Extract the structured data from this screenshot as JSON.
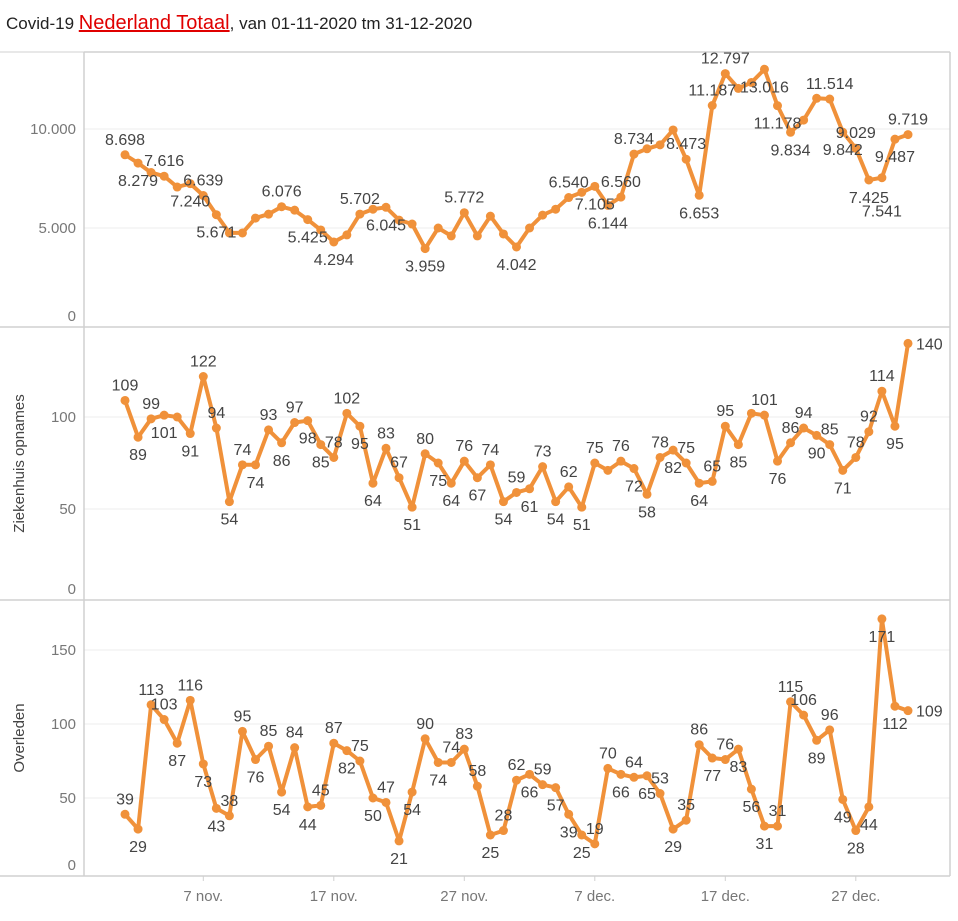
{
  "header": {
    "prefix": "Covid-19 ",
    "link": "Nederland Totaal",
    "suffix": ", van 01-11-2020 tm 31-12-2020"
  },
  "colors": {
    "line": "#f0913a",
    "link": "#e00000",
    "grid": "#ececec",
    "border": "#d0d0d0"
  },
  "chart_data": [
    {
      "type": "line",
      "ylabel": "",
      "ylim": [
        0,
        13800
      ],
      "yticks": [
        0,
        5000,
        10000
      ],
      "ytick_labels": [
        "0",
        "5.000",
        "10.000"
      ],
      "values": [
        8698,
        8279,
        7800,
        7616,
        7070,
        7240,
        6639,
        5671,
        4750,
        4750,
        5500,
        5700,
        6076,
        5900,
        5425,
        4900,
        4294,
        4650,
        5702,
        5950,
        6045,
        5400,
        5200,
        3959,
        5000,
        4600,
        5772,
        4600,
        5600,
        4700,
        4042,
        5000,
        5650,
        5950,
        6540,
        6800,
        7105,
        6144,
        6560,
        8734,
        9000,
        9200,
        9950,
        8473,
        6653,
        11187,
        12797,
        12050,
        12350,
        13016,
        11178,
        9834,
        10450,
        11550,
        11514,
        9842,
        9029,
        7425,
        7541,
        9487,
        9719
      ],
      "point_labels": [
        "8.698",
        "8.279",
        "",
        "7.616",
        "",
        "7.240",
        "6.639",
        "5.671",
        "",
        "",
        "",
        "",
        "6.076",
        "",
        "5.425",
        "",
        "4.294",
        "",
        "5.702",
        "",
        "6.045",
        "",
        "",
        "3.959",
        "",
        "",
        "5.772",
        "",
        "",
        "",
        "4.042",
        "",
        "",
        "",
        "6.540",
        "",
        "7.105",
        "6.144",
        "6.560",
        "8.734",
        "",
        "",
        "",
        "8.473",
        "6.653",
        "11.187",
        "12.797",
        "",
        "",
        "13.016",
        "11.178",
        "9.834",
        "",
        "",
        "11.514",
        "9.842",
        "9.029",
        "7.425",
        "7.541",
        "9.487",
        "9.719"
      ],
      "grid": true
    },
    {
      "type": "line",
      "ylabel": "Ziekenhuis opnames",
      "ylim": [
        0,
        148
      ],
      "yticks": [
        0,
        50,
        100
      ],
      "ytick_labels": [
        "0",
        "50",
        "100"
      ],
      "values": [
        109,
        89,
        99,
        101,
        100,
        91,
        122,
        94,
        54,
        74,
        74,
        93,
        86,
        97,
        98,
        85,
        78,
        102,
        95,
        64,
        83,
        67,
        51,
        80,
        75,
        64,
        76,
        67,
        74,
        54,
        59,
        61,
        73,
        54,
        62,
        51,
        75,
        71,
        76,
        72,
        58,
        78,
        82,
        75,
        64,
        65,
        95,
        85,
        102,
        101,
        76,
        86,
        94,
        90,
        85,
        71,
        78,
        92,
        114,
        95,
        140
      ],
      "point_labels": [
        "109",
        "89",
        "99",
        "101",
        "",
        "91",
        "122",
        "94",
        "54",
        "74",
        "74",
        "93",
        "86",
        "97",
        "98",
        "85",
        "78",
        "102",
        "95",
        "64",
        "83",
        "67",
        "51",
        "80",
        "75",
        "64",
        "76",
        "67",
        "74",
        "54",
        "59",
        "61",
        "73",
        "54",
        "62",
        "51",
        "75",
        "",
        "76",
        "72",
        "58",
        "78",
        "82",
        "75",
        "64",
        "65",
        "95",
        "85",
        "",
        "101",
        "76",
        "86",
        "94",
        "90",
        "85",
        "71",
        "78",
        "92",
        "114",
        "95",
        "140"
      ],
      "grid": true
    },
    {
      "type": "line",
      "ylabel": "Overleden",
      "ylim": [
        0,
        185
      ],
      "yticks": [
        0,
        50,
        100,
        150
      ],
      "ytick_labels": [
        "0",
        "50",
        "100",
        "150"
      ],
      "values": [
        39,
        29,
        113,
        103,
        87,
        116,
        73,
        43,
        38,
        95,
        76,
        85,
        54,
        84,
        44,
        45,
        87,
        82,
        75,
        50,
        47,
        21,
        54,
        90,
        74,
        74,
        83,
        58,
        25,
        28,
        62,
        66,
        59,
        57,
        39,
        25,
        19,
        70,
        66,
        64,
        65,
        53,
        29,
        35,
        86,
        77,
        76,
        83,
        56,
        31,
        31,
        115,
        106,
        89,
        96,
        49,
        28,
        44,
        171,
        112,
        109
      ],
      "point_labels": [
        "39",
        "29",
        "113",
        "103",
        "87",
        "116",
        "73",
        "43",
        "38",
        "95",
        "76",
        "85",
        "54",
        "84",
        "44",
        "45",
        "87",
        "82",
        "75",
        "50",
        "47",
        "21",
        "54",
        "90",
        "74",
        "74",
        "83",
        "58",
        "25",
        "28",
        "62",
        "66",
        "59",
        "57",
        "39",
        "25",
        "19",
        "70",
        "66",
        "64",
        "65",
        "53",
        "29",
        "35",
        "86",
        "77",
        "76",
        "83",
        "56",
        "31",
        "31",
        "115",
        "106",
        "89",
        "96",
        "49",
        "28",
        "44",
        "171",
        "112",
        "109"
      ],
      "grid": true
    }
  ],
  "x_axis": {
    "start": "01-11-2020",
    "end": "31-12-2020",
    "tick_days": [
      6,
      16,
      26,
      36,
      46,
      56
    ],
    "tick_labels": [
      "7 nov.",
      "17 nov.",
      "27 nov.",
      "7 dec.",
      "17 dec.",
      "27 dec."
    ]
  }
}
